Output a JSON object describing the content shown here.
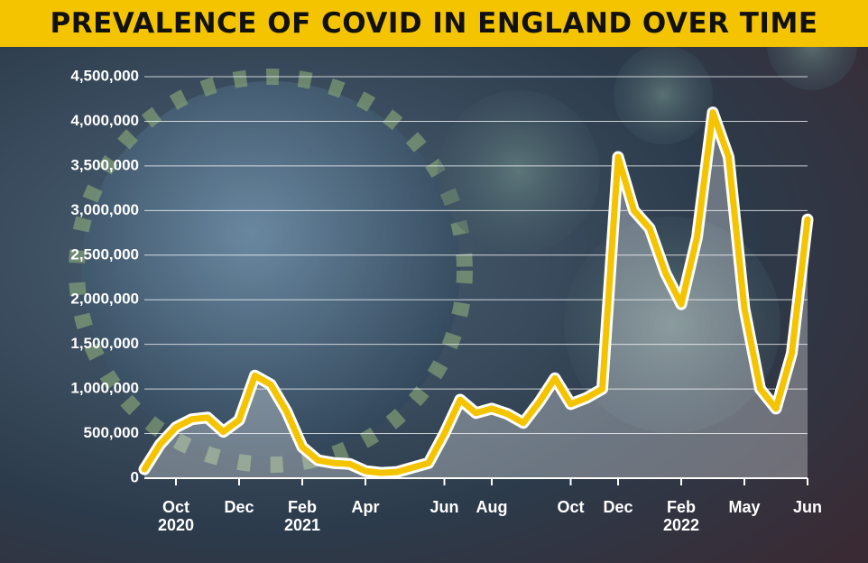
{
  "chart_data": {
    "type": "line",
    "title": "PREVALENCE OF COVID IN ENGLAND OVER TIME",
    "categories": [
      null,
      null,
      "Oct\n2020",
      null,
      null,
      null,
      "Dec",
      null,
      null,
      null,
      "Feb\n2021",
      null,
      null,
      null,
      "Apr",
      null,
      null,
      null,
      null,
      "Jun",
      null,
      null,
      "Aug",
      null,
      null,
      null,
      null,
      "Oct",
      null,
      null,
      "Dec",
      null,
      null,
      null,
      "Feb\n2022",
      null,
      null,
      null,
      "May",
      null,
      null,
      null,
      "Jun"
    ],
    "series": [
      {
        "color": "#f5c400",
        "values": [
          100000,
          380000,
          570000,
          660000,
          680000,
          520000,
          650000,
          1150000,
          1050000,
          750000,
          350000,
          200000,
          170000,
          160000,
          80000,
          60000,
          70000,
          120000,
          170000,
          500000,
          880000,
          730000,
          780000,
          720000,
          620000,
          850000,
          1120000,
          830000,
          900000,
          1000000,
          3600000,
          3000000,
          2800000,
          2300000,
          1950000,
          2700000,
          4100000,
          3600000,
          1900000,
          1000000,
          780000,
          1400000,
          2900000
        ]
      }
    ],
    "ylim": [
      0,
      4500000
    ],
    "yticks": [
      0,
      {
        "value": 500000,
        "label": "500,000"
      },
      {
        "value": 1000000,
        "label": "1,000,000"
      },
      {
        "value": 1500000,
        "label": "1,500,000"
      },
      {
        "value": 2000000,
        "label": "2,000,000"
      },
      {
        "value": 2500000,
        "label": "2,500,000"
      },
      {
        "value": 3000000,
        "label": "3,000,000"
      },
      {
        "value": 3500000,
        "label": "3,500,000"
      },
      {
        "value": 4000000,
        "label": "4,000,000"
      },
      {
        "value": 4500000,
        "label": "4,500,000"
      }
    ],
    "grid": true
  }
}
